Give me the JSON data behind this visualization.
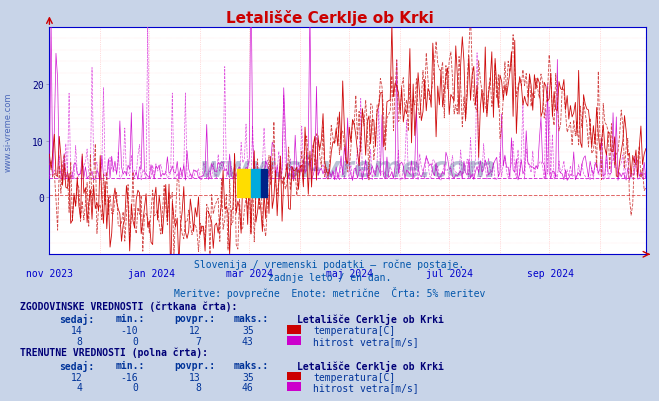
{
  "title": "Letališče Cerklje ob Krki",
  "bg_color": "#c8d4e8",
  "plot_bg_color": "#ffffff",
  "x_label_color": "#0000cc",
  "y_label_color": "#000080",
  "title_color": "#cc0000",
  "text_color": "#0055aa",
  "border_color": "#0000cc",
  "x_ticks": [
    "nov 2023",
    "jan 2024",
    "mar 2024",
    "maj 2024",
    "jul 2024",
    "sep 2024"
  ],
  "x_tick_pos": [
    0,
    62,
    122,
    183,
    244,
    306
  ],
  "y_ticks": [
    0,
    10,
    20
  ],
  "ylim": [
    -10,
    30
  ],
  "hline1_y": 0.5,
  "hline1_color": "#cc0000",
  "hline2_y": 3.5,
  "hline2_color": "#cc00cc",
  "watermark": "www.si-vreme.com",
  "watermark_color": "#1a3a7a",
  "subtitle1": "Slovenija / vremenski podatki – ročne postaje.",
  "subtitle2": "zadnje leto / en dan.",
  "subtitle3": "Meritve: povprečne  Enote: metrične  Črta: 5% meritev",
  "legend_title_hist": "ZGODOVINSKE VREDNOSTI (črtkana črta):",
  "legend_title_curr": "TRENUTNE VREDNOSTI (polna črta):",
  "legend_station": "Letališče Cerklje ob Krki",
  "hist_temp_vals": [
    14,
    -10,
    12,
    35
  ],
  "hist_wind_vals": [
    8,
    0,
    7,
    43
  ],
  "curr_temp_vals": [
    12,
    -16,
    13,
    35
  ],
  "curr_wind_vals": [
    4,
    0,
    8,
    46
  ],
  "temp_color": "#cc0000",
  "temp_color_hist": "#cc3333",
  "wind_color": "#cc00cc",
  "wind_color_hist": "#dd44dd",
  "temp_label": "temperatura[C]",
  "wind_label": "hitrost vetra[m/s]",
  "n_points": 365
}
